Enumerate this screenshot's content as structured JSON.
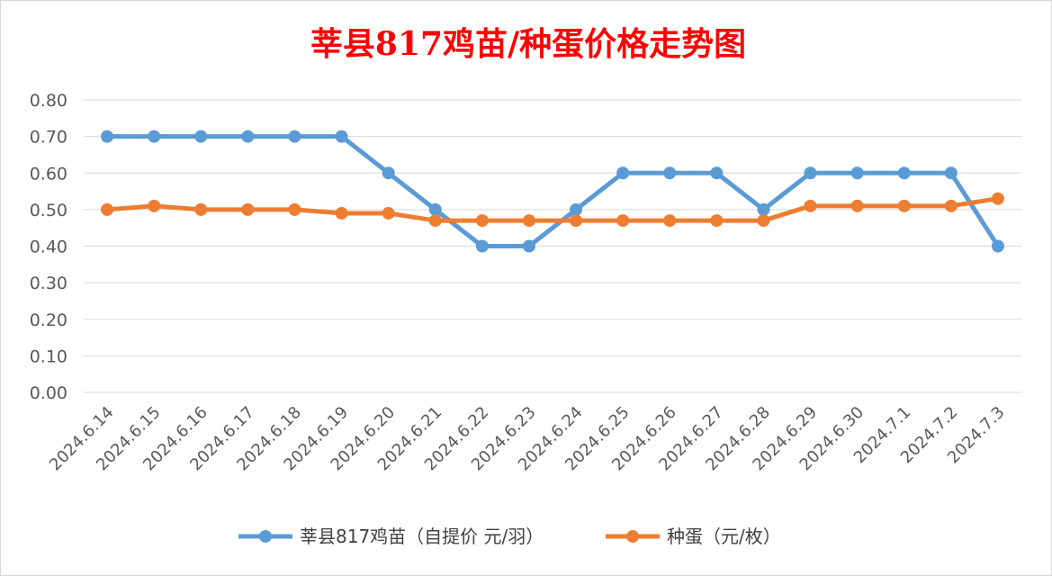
{
  "colors": {
    "series1": "#5b9bd5",
    "series2": "#ed7d31",
    "title": "#ff0000",
    "grid": "#d9d9d9",
    "axis_text": "#595959"
  },
  "chart_data": {
    "type": "line",
    "title": "莘县817鸡苗/种蛋价格走势图",
    "xlabel": "",
    "ylabel": "",
    "x": [
      "2024.6.14",
      "2024.6.15",
      "2024.6.16",
      "2024.6.17",
      "2024.6.18",
      "2024.6.19",
      "2024.6.20",
      "2024.6.21",
      "2024.6.22",
      "2024.6.23",
      "2024.6.24",
      "2024.6.25",
      "2024.6.26",
      "2024.6.27",
      "2024.6.28",
      "2024.6.29",
      "2024.6.30",
      "2024.7.1",
      "2024.7.2",
      "2024.7.3"
    ],
    "ylim": [
      0,
      0.8
    ],
    "yticks": [
      "0.00",
      "0.10",
      "0.20",
      "0.30",
      "0.40",
      "0.50",
      "0.60",
      "0.70",
      "0.80"
    ],
    "grid": true,
    "legend_position": "bottom",
    "series": [
      {
        "name": "莘县817鸡苗（自提价 元/羽）",
        "values": [
          0.7,
          0.7,
          0.7,
          0.7,
          0.7,
          0.7,
          0.6,
          0.5,
          0.4,
          0.4,
          0.5,
          0.6,
          0.6,
          0.6,
          0.5,
          0.6,
          0.6,
          0.6,
          0.6,
          0.4
        ]
      },
      {
        "name": "种蛋（元/枚）",
        "values": [
          0.5,
          0.51,
          0.5,
          0.5,
          0.5,
          0.49,
          0.49,
          0.47,
          0.47,
          0.47,
          0.47,
          0.47,
          0.47,
          0.47,
          0.47,
          0.51,
          0.51,
          0.51,
          0.51,
          0.53
        ]
      }
    ]
  }
}
